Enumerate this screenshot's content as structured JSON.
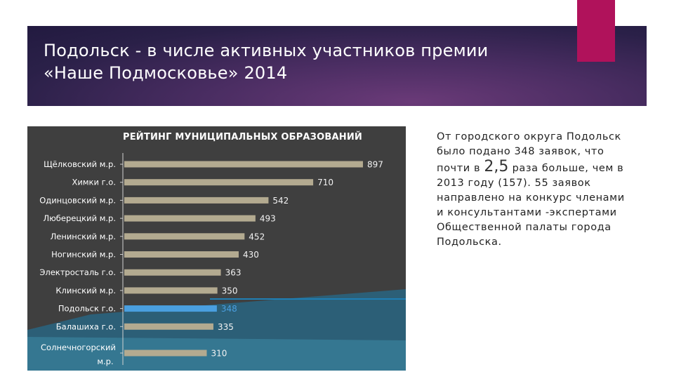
{
  "slide": {
    "title_line1": "Подольск  - в числе активных участников премии",
    "title_line2": "«Наше Подмосковье» 2014"
  },
  "text_block": {
    "part1": "От городского округа Подольск  было подано 348 заявок, что почти в ",
    "highlight": "2,5",
    "part2": " раза больше, чем в  2013 году (157). 55 заявок направлено на конкурс членами и консультантами -экспертами Общественной палаты города Подольска."
  },
  "colors": {
    "bar": "#b3aa90",
    "highlight": "#4a9fe0",
    "panel": "#3f3f3f",
    "accent": "#b0125b",
    "banner": "#3a2656"
  },
  "chart_data": {
    "type": "bar",
    "orientation": "horizontal",
    "title": "РЕЙТИНГ МУНИЦИПАЛЬНЫХ ОБРАЗОВАНИЙ",
    "categories": [
      "Щёлковский м.р.",
      "Химки г.о.",
      "Одинцовский м.р.",
      "Люберецкий м.р.",
      "Ленинский м.р.",
      "Ногинский м.р.",
      "Электросталь г.о.",
      "Клинский м.р.",
      "Подольск г.о.",
      "Балашиха г.о.",
      "Солнечногорский м.р."
    ],
    "values": [
      897,
      710,
      542,
      493,
      452,
      430,
      363,
      350,
      348,
      335,
      310
    ],
    "highlight_category": "Подольск г.о.",
    "xlim": [
      0,
      1000
    ],
    "grid": false
  }
}
